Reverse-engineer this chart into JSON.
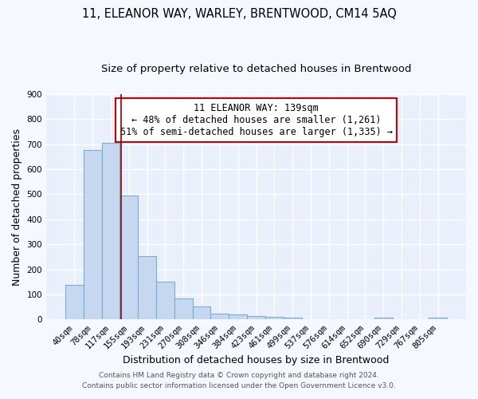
{
  "title": "11, ELEANOR WAY, WARLEY, BRENTWOOD, CM14 5AQ",
  "subtitle": "Size of property relative to detached houses in Brentwood",
  "xlabel": "Distribution of detached houses by size in Brentwood",
  "ylabel": "Number of detached properties",
  "categories": [
    "40sqm",
    "78sqm",
    "117sqm",
    "155sqm",
    "193sqm",
    "231sqm",
    "270sqm",
    "308sqm",
    "346sqm",
    "384sqm",
    "423sqm",
    "461sqm",
    "499sqm",
    "537sqm",
    "576sqm",
    "614sqm",
    "652sqm",
    "690sqm",
    "729sqm",
    "767sqm",
    "805sqm"
  ],
  "values": [
    140,
    675,
    705,
    495,
    252,
    152,
    85,
    52,
    25,
    22,
    15,
    11,
    9,
    2,
    1,
    1,
    1,
    8,
    0,
    0,
    9
  ],
  "bar_color": "#c5d8f0",
  "bar_edge_color": "#7badd4",
  "vline_color": "#8b0000",
  "annotation_line0": "11 ELEANOR WAY: 139sqm",
  "annotation_line1": "← 48% of detached houses are smaller (1,261)",
  "annotation_line2": "51% of semi-detached houses are larger (1,335) →",
  "annotation_box_color": "#cc0000",
  "footer1": "Contains HM Land Registry data © Crown copyright and database right 2024.",
  "footer2": "Contains public sector information licensed under the Open Government Licence v3.0.",
  "ylim": [
    0,
    900
  ],
  "yticks": [
    0,
    100,
    200,
    300,
    400,
    500,
    600,
    700,
    800,
    900
  ],
  "bg_color": "#eaf0fb",
  "grid_color": "#ffffff",
  "fig_bg_color": "#f5f8fe",
  "title_fontsize": 10.5,
  "subtitle_fontsize": 9.5,
  "tick_fontsize": 7.5,
  "label_fontsize": 9,
  "annotation_fontsize": 8.5
}
